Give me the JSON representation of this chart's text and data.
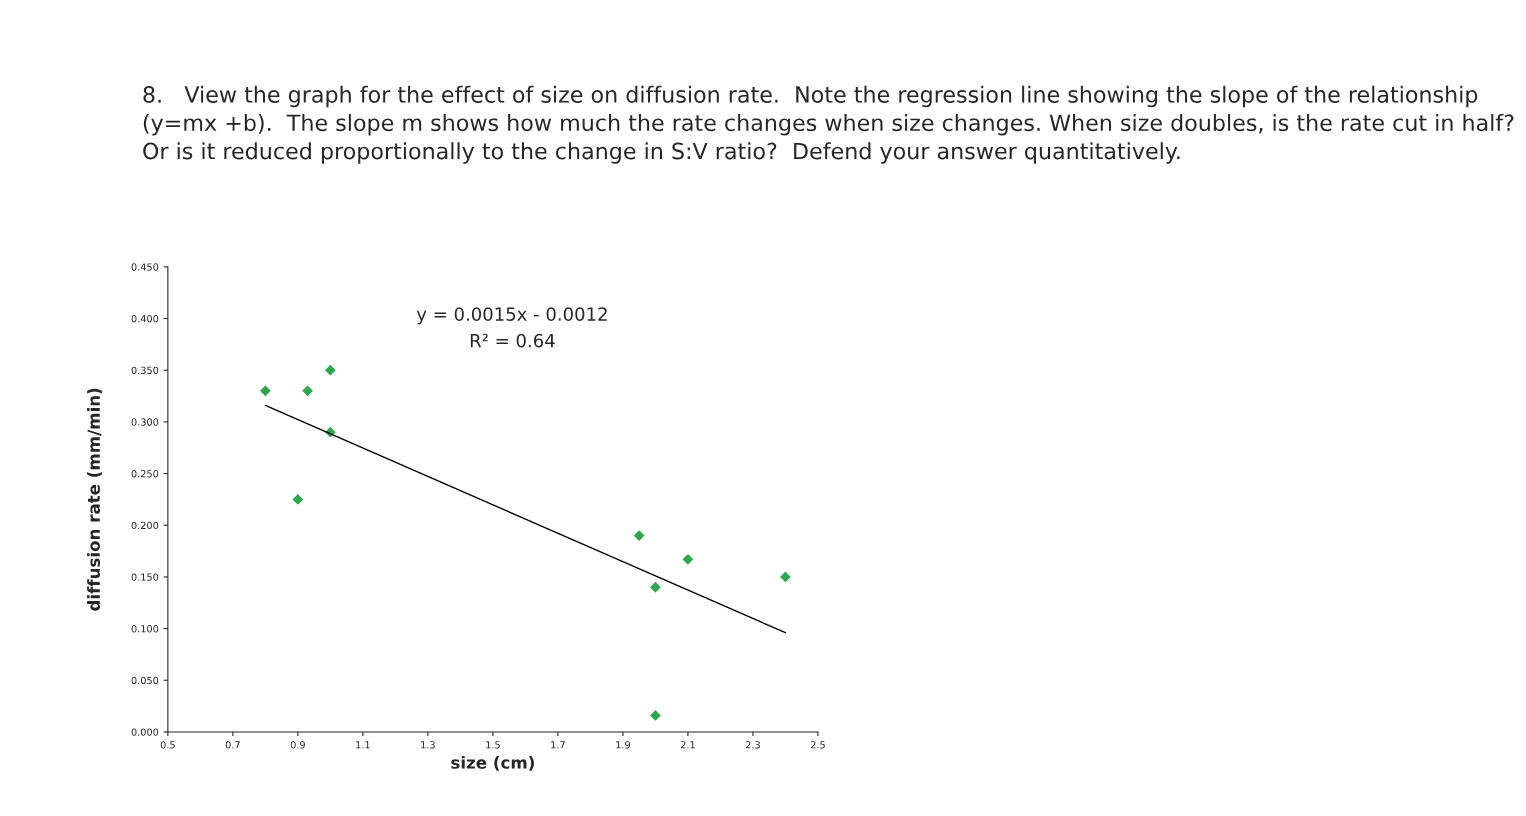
{
  "chart_data": {
    "type": "scatter",
    "title": "8.   View the graph for the effect of size on diffusion rate.  Note the regression line showing the slope of the relationship (y=mx +b).  The slope m shows how much the rate changes when size changes. When size doubles, is the rate cut in half?  Or is it reduced proportionally to the change in S:V ratio?  Defend your answer quantitatively.",
    "xlabel": "size (cm)",
    "ylabel": "diffusion rate (mm/min)",
    "series": [
      {
        "color": "#2ea84f",
        "marker": "diamond",
        "x": [
          0.8,
          0.93,
          1.0,
          1.0,
          0.9,
          1.95,
          2.0,
          2.1,
          2.4,
          2.0
        ],
        "values": [
          0.33,
          0.33,
          0.35,
          0.29,
          0.225,
          0.19,
          0.14,
          0.167,
          0.15,
          0.016
        ]
      },
      {
        "type": "line",
        "color": "#000000",
        "x": [
          0.8,
          2.4
        ],
        "values": [
          0.316,
          0.096
        ]
      }
    ],
    "annotations": [
      "y = 0.0015x - 0.0012",
      "R² = 0.64"
    ],
    "xlim": [
      0.5,
      2.5
    ],
    "xticks": [
      0.5,
      0.7,
      0.9,
      1.1,
      1.3,
      1.5,
      1.7,
      1.9,
      2.1,
      2.3,
      2.5
    ],
    "ylim": [
      0,
      0.45
    ],
    "yticks": [
      {
        "value": 0,
        "label": "0.000"
      },
      {
        "value": 0.05,
        "label": "0.050"
      },
      {
        "value": 0.1,
        "label": "0.100"
      },
      {
        "value": 0.15,
        "label": "0.150"
      },
      {
        "value": 0.2,
        "label": "0.200"
      },
      {
        "value": 0.25,
        "label": "0.250"
      },
      {
        "value": 0.3,
        "label": "0.300"
      },
      {
        "value": 0.35,
        "label": "0.350"
      },
      {
        "value": 0.4,
        "label": "0.400"
      },
      {
        "value": 0.45,
        "label": "0.450"
      }
    ],
    "grid": false,
    "legend": false
  }
}
